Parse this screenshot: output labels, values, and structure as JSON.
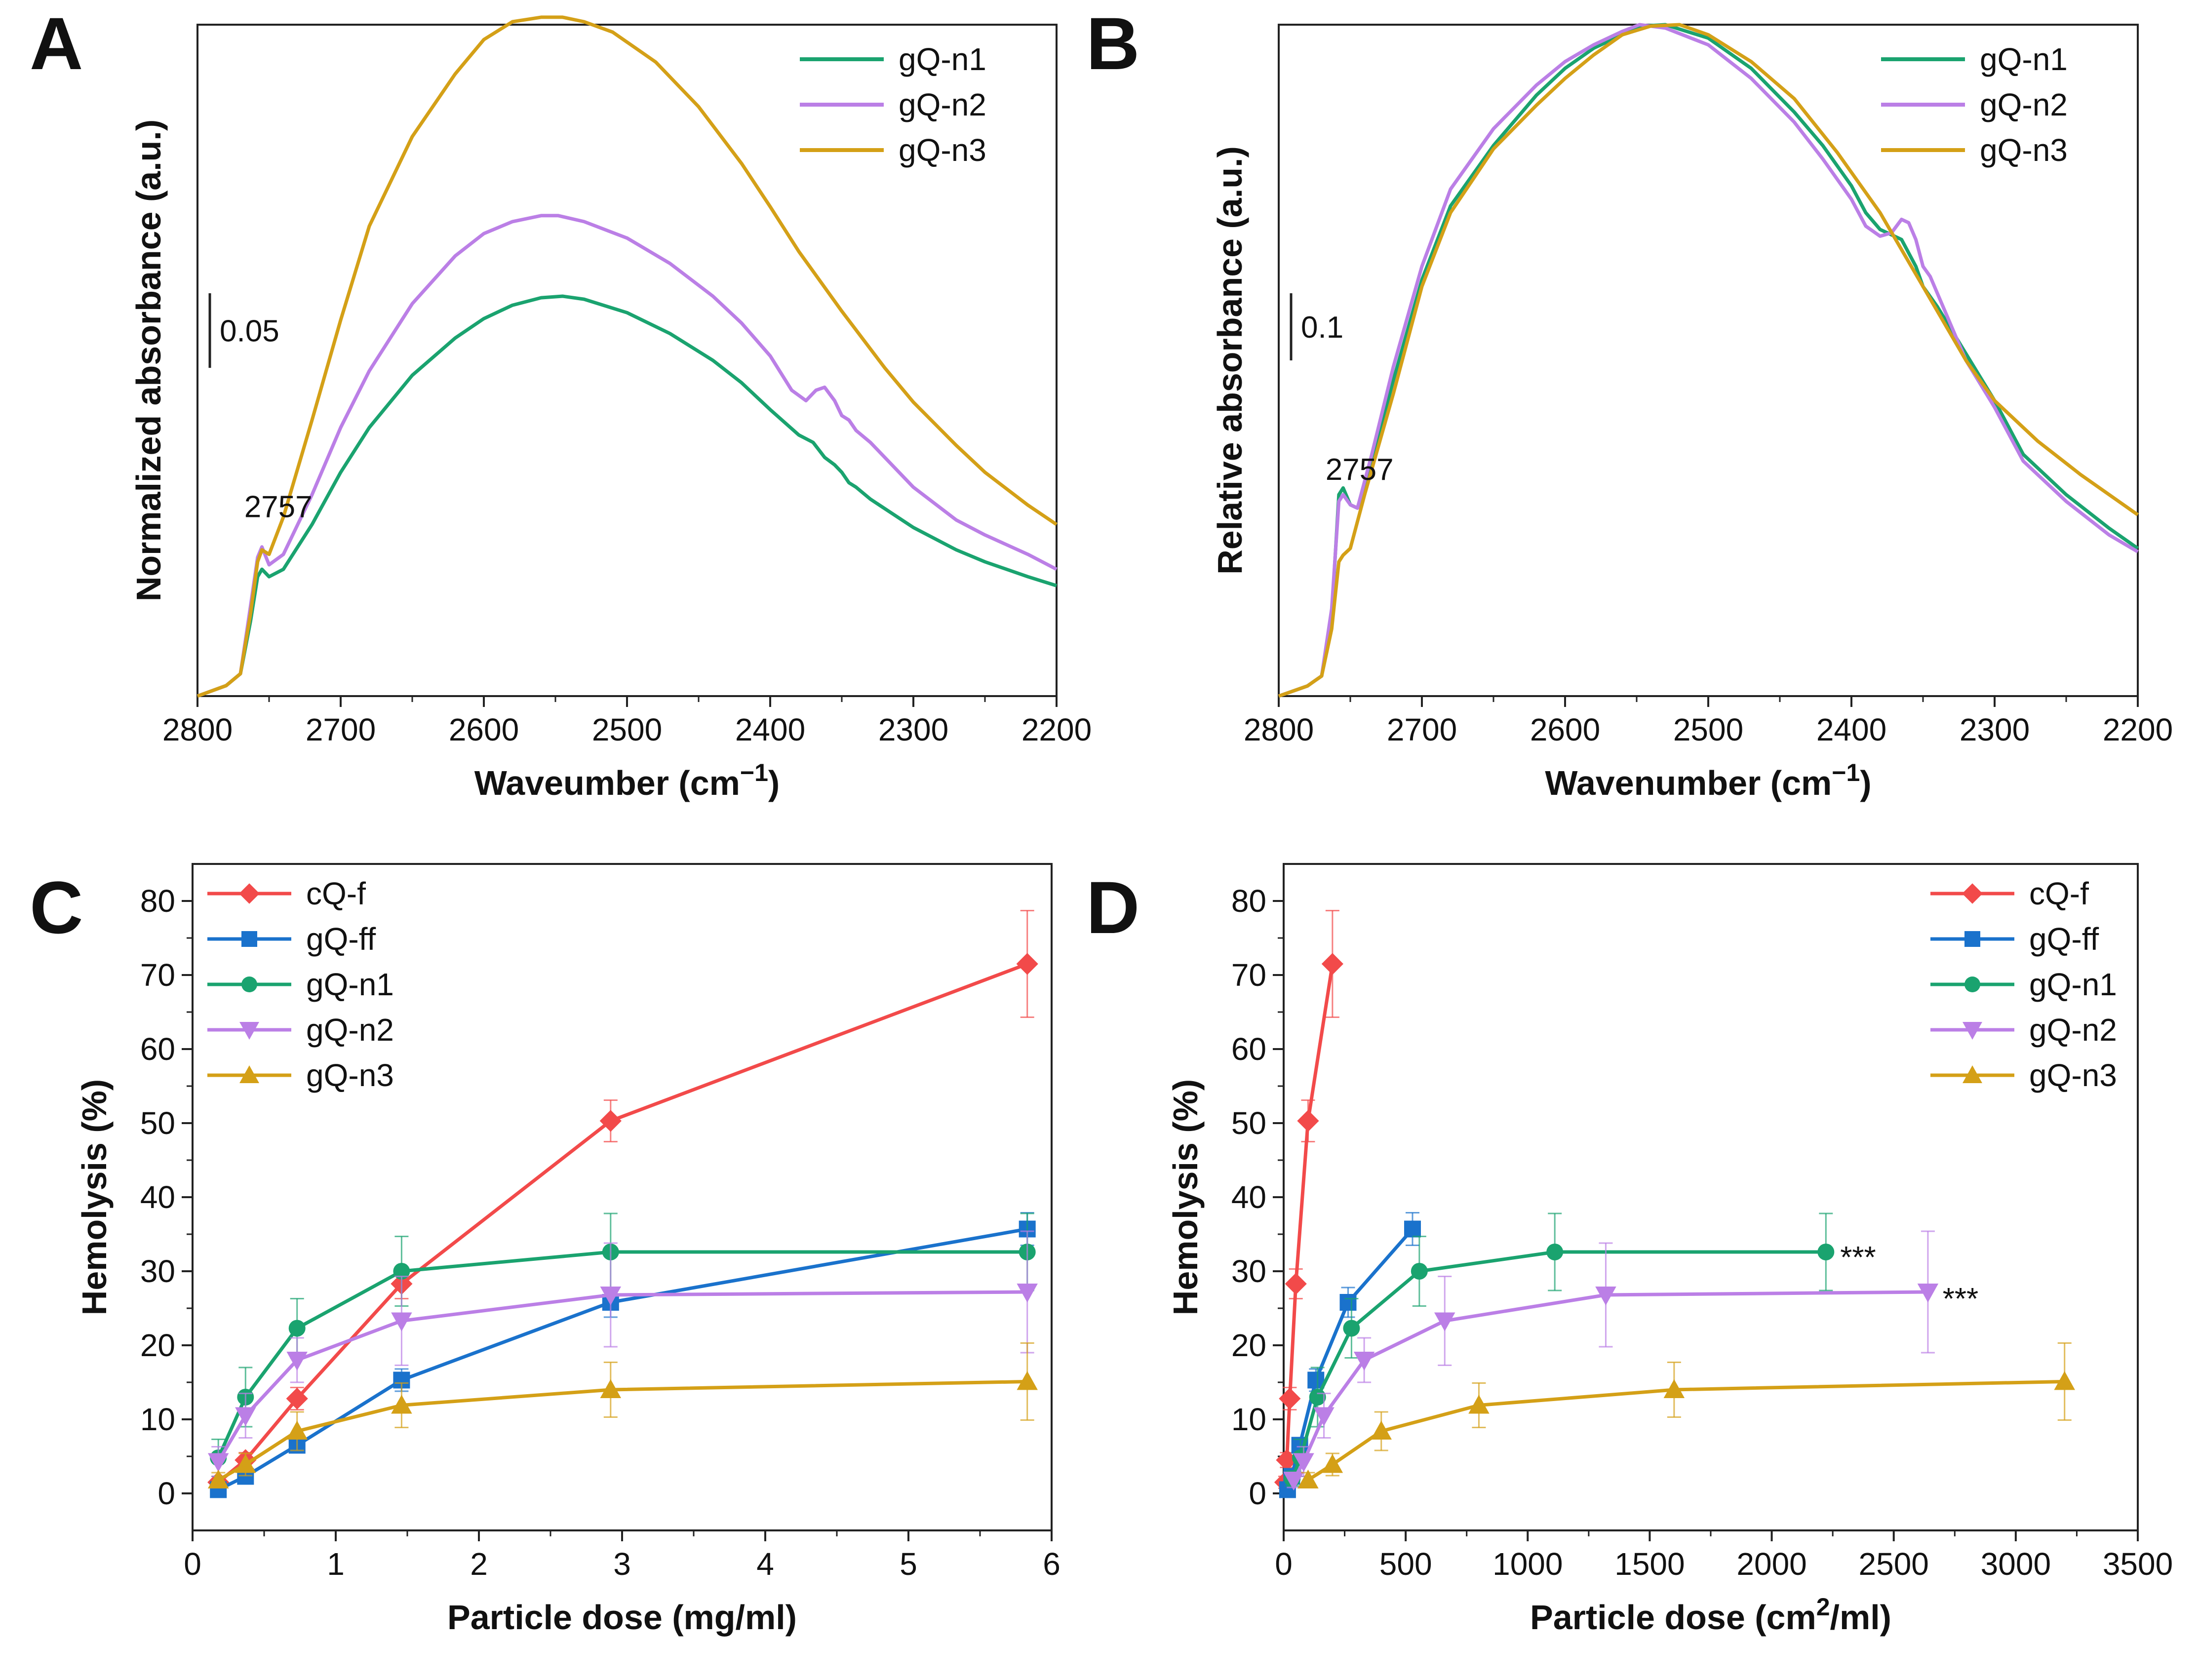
{
  "chart_data": [
    {
      "panel": "A",
      "type": "line",
      "xlabel": "Waveumber (cm",
      "xlabel_sup": "−1",
      "xlabel_close": ")",
      "ylabel": "Normalized absorbance (a.u.)",
      "xlim": [
        2800,
        2200
      ],
      "xticks": [
        2800,
        2700,
        2600,
        2500,
        2400,
        2300,
        2200
      ],
      "ylim": [
        0,
        0.45
      ],
      "scale_bar": {
        "label": "0.05",
        "value": 0.05
      },
      "annotation": {
        "label": "2757",
        "x": 2757,
        "y": 0.11
      },
      "legend": [
        "gQ-n1",
        "gQ-n2",
        "gQ-n3"
      ],
      "series": [
        {
          "name": "gQ-n1",
          "color": "#1aa36f",
          "x": [
            2800,
            2780,
            2770,
            2763,
            2758,
            2755,
            2750,
            2740,
            2720,
            2700,
            2680,
            2650,
            2620,
            2600,
            2580,
            2560,
            2545,
            2530,
            2500,
            2470,
            2440,
            2420,
            2400,
            2380,
            2370,
            2362,
            2355,
            2350,
            2345,
            2340,
            2330,
            2300,
            2270,
            2250,
            2220,
            2200
          ],
          "y": [
            0.0,
            0.007,
            0.015,
            0.05,
            0.08,
            0.085,
            0.08,
            0.085,
            0.115,
            0.15,
            0.18,
            0.215,
            0.24,
            0.253,
            0.262,
            0.267,
            0.268,
            0.266,
            0.257,
            0.243,
            0.225,
            0.21,
            0.192,
            0.175,
            0.17,
            0.16,
            0.155,
            0.15,
            0.143,
            0.14,
            0.132,
            0.113,
            0.098,
            0.09,
            0.08,
            0.074
          ]
        },
        {
          "name": "gQ-n2",
          "color": "#bb7fe6",
          "x": [
            2800,
            2780,
            2770,
            2763,
            2758,
            2755,
            2750,
            2740,
            2720,
            2700,
            2680,
            2650,
            2620,
            2600,
            2580,
            2560,
            2548,
            2530,
            2500,
            2470,
            2440,
            2420,
            2400,
            2385,
            2375,
            2368,
            2362,
            2355,
            2350,
            2345,
            2340,
            2330,
            2300,
            2270,
            2250,
            2220,
            2200
          ],
          "y": [
            0.0,
            0.007,
            0.015,
            0.06,
            0.093,
            0.1,
            0.088,
            0.095,
            0.135,
            0.18,
            0.218,
            0.263,
            0.295,
            0.31,
            0.318,
            0.322,
            0.322,
            0.318,
            0.307,
            0.29,
            0.268,
            0.25,
            0.228,
            0.205,
            0.198,
            0.205,
            0.207,
            0.198,
            0.188,
            0.185,
            0.178,
            0.17,
            0.14,
            0.118,
            0.108,
            0.095,
            0.085
          ]
        },
        {
          "name": "gQ-n3",
          "color": "#d4a017",
          "x": [
            2800,
            2780,
            2770,
            2763,
            2758,
            2755,
            2750,
            2740,
            2720,
            2700,
            2680,
            2650,
            2620,
            2600,
            2580,
            2560,
            2545,
            2530,
            2510,
            2480,
            2450,
            2420,
            2400,
            2380,
            2350,
            2320,
            2300,
            2270,
            2250,
            2220,
            2200
          ],
          "y": [
            0.0,
            0.007,
            0.015,
            0.055,
            0.09,
            0.098,
            0.095,
            0.12,
            0.185,
            0.252,
            0.315,
            0.375,
            0.417,
            0.44,
            0.452,
            0.455,
            0.455,
            0.452,
            0.445,
            0.425,
            0.395,
            0.357,
            0.328,
            0.298,
            0.258,
            0.22,
            0.197,
            0.168,
            0.15,
            0.128,
            0.115
          ]
        }
      ]
    },
    {
      "panel": "B",
      "type": "line",
      "xlabel": "Wavenumber (cm",
      "xlabel_sup": "−1",
      "xlabel_close": ")",
      "ylabel": "Relative absorbance (a.u.)",
      "xlim": [
        2800,
        2200
      ],
      "xticks": [
        2800,
        2700,
        2600,
        2500,
        2400,
        2300,
        2200
      ],
      "ylim": [
        0,
        1.0
      ],
      "scale_bar": {
        "label": "0.1",
        "value": 0.1
      },
      "annotation": {
        "label": "2757",
        "x": 2757,
        "y": 0.3
      },
      "legend": [
        "gQ-n1",
        "gQ-n2",
        "gQ-n3"
      ],
      "series": [
        {
          "name": "gQ-n1",
          "color": "#1aa36f",
          "x": [
            2800,
            2780,
            2770,
            2763,
            2758,
            2755,
            2750,
            2745,
            2735,
            2720,
            2700,
            2680,
            2650,
            2620,
            2600,
            2580,
            2560,
            2545,
            2530,
            2500,
            2470,
            2440,
            2420,
            2400,
            2390,
            2380,
            2375,
            2365,
            2355,
            2350,
            2340,
            2320,
            2300,
            2280,
            2250,
            2220,
            2200
          ],
          "y": [
            0.0,
            0.015,
            0.03,
            0.12,
            0.3,
            0.31,
            0.285,
            0.28,
            0.35,
            0.47,
            0.62,
            0.73,
            0.82,
            0.895,
            0.935,
            0.965,
            0.985,
            0.998,
            1.0,
            0.98,
            0.935,
            0.87,
            0.82,
            0.76,
            0.72,
            0.695,
            0.69,
            0.68,
            0.64,
            0.61,
            0.58,
            0.51,
            0.44,
            0.36,
            0.3,
            0.25,
            0.22
          ]
        },
        {
          "name": "gQ-n2",
          "color": "#bb7fe6",
          "x": [
            2800,
            2780,
            2770,
            2763,
            2758,
            2755,
            2750,
            2745,
            2735,
            2720,
            2700,
            2680,
            2650,
            2620,
            2600,
            2580,
            2560,
            2548,
            2530,
            2500,
            2470,
            2440,
            2420,
            2400,
            2390,
            2380,
            2372,
            2365,
            2360,
            2355,
            2350,
            2345,
            2320,
            2300,
            2280,
            2250,
            2220,
            2200
          ],
          "y": [
            0.0,
            0.015,
            0.03,
            0.13,
            0.29,
            0.3,
            0.285,
            0.28,
            0.36,
            0.49,
            0.64,
            0.755,
            0.845,
            0.91,
            0.945,
            0.97,
            0.99,
            1.0,
            0.995,
            0.97,
            0.92,
            0.855,
            0.8,
            0.74,
            0.7,
            0.685,
            0.69,
            0.71,
            0.705,
            0.68,
            0.64,
            0.625,
            0.5,
            0.43,
            0.35,
            0.29,
            0.24,
            0.215
          ]
        },
        {
          "name": "gQ-n3",
          "color": "#d4a017",
          "x": [
            2800,
            2780,
            2770,
            2763,
            2758,
            2755,
            2750,
            2740,
            2720,
            2700,
            2680,
            2650,
            2620,
            2600,
            2580,
            2560,
            2540,
            2520,
            2500,
            2470,
            2440,
            2410,
            2380,
            2350,
            2320,
            2300,
            2270,
            2240,
            2220,
            2200
          ],
          "y": [
            0.0,
            0.015,
            0.03,
            0.1,
            0.2,
            0.21,
            0.22,
            0.3,
            0.45,
            0.61,
            0.72,
            0.815,
            0.88,
            0.92,
            0.955,
            0.985,
            0.998,
            1.0,
            0.985,
            0.945,
            0.89,
            0.81,
            0.72,
            0.61,
            0.5,
            0.44,
            0.38,
            0.33,
            0.3,
            0.27
          ]
        }
      ]
    },
    {
      "panel": "C",
      "type": "scatter",
      "xlabel": "Particle dose (mg/ml)",
      "ylabel": "Hemolysis (%)",
      "xlim": [
        0,
        6
      ],
      "ylim": [
        -5,
        85
      ],
      "xticks": [
        0,
        1,
        2,
        3,
        4,
        5,
        6
      ],
      "yticks": [
        0,
        10,
        20,
        30,
        40,
        50,
        60,
        70,
        80
      ],
      "legend": [
        "cQ-f",
        "gQ-ff",
        "gQ-n1",
        "gQ-n2",
        "gQ-n3"
      ],
      "series": [
        {
          "name": "cQ-f",
          "color": "#f24a4a",
          "marker": "diamond",
          "x": [
            0.18,
            0.37,
            0.73,
            1.46,
            2.92,
            5.83
          ],
          "y": [
            1.5,
            4.5,
            12.8,
            28.3,
            50.3,
            71.5
          ],
          "err": [
            0.8,
            1.0,
            1.5,
            2.0,
            2.8,
            7.2
          ]
        },
        {
          "name": "gQ-ff",
          "color": "#1a72cc",
          "marker": "square",
          "x": [
            0.18,
            0.37,
            0.73,
            1.46,
            2.92,
            5.83
          ],
          "y": [
            0.5,
            2.3,
            6.5,
            15.3,
            25.8,
            35.7
          ],
          "err": [
            0.5,
            0.8,
            1.0,
            1.5,
            2.0,
            2.2
          ]
        },
        {
          "name": "gQ-n1",
          "color": "#1aa36f",
          "marker": "circle",
          "x": [
            0.18,
            0.37,
            0.73,
            1.46,
            2.92,
            5.83
          ],
          "y": [
            4.8,
            13.0,
            22.3,
            30.0,
            32.6,
            32.6
          ],
          "err": [
            2.5,
            4.0,
            4.0,
            4.7,
            5.2,
            5.2
          ]
        },
        {
          "name": "gQ-n2",
          "color": "#bb7fe6",
          "marker": "triangle-down",
          "x": [
            0.18,
            0.37,
            0.73,
            1.46,
            2.92,
            5.83
          ],
          "y": [
            4.3,
            10.5,
            18.0,
            23.3,
            26.8,
            27.2
          ],
          "err": [
            2.0,
            3.0,
            3.0,
            6.0,
            7.0,
            8.2
          ]
        },
        {
          "name": "gQ-n3",
          "color": "#d4a017",
          "marker": "triangle-up",
          "x": [
            0.18,
            0.37,
            0.73,
            1.46,
            2.92,
            5.83
          ],
          "y": [
            1.8,
            3.9,
            8.4,
            11.9,
            14.0,
            15.1
          ],
          "err": [
            1.0,
            1.5,
            2.6,
            3.0,
            3.7,
            5.2
          ]
        }
      ]
    },
    {
      "panel": "D",
      "type": "scatter",
      "xlabel": "Particle dose (cm",
      "xlabel_sup": "2",
      "xlabel_close": "/ml)",
      "ylabel": "Hemolysis (%)",
      "xlim": [
        0,
        3500
      ],
      "ylim": [
        -5,
        85
      ],
      "xticks": [
        0,
        500,
        1000,
        1500,
        2000,
        2500,
        3000,
        3500
      ],
      "yticks": [
        0,
        10,
        20,
        30,
        40,
        50,
        60,
        70,
        80
      ],
      "legend": [
        "cQ-f",
        "gQ-ff",
        "gQ-n1",
        "gQ-n2",
        "gQ-n3"
      ],
      "annotations": [
        {
          "label": "***",
          "x": 2240,
          "y": 32.6
        },
        {
          "label": "***",
          "x": 2660,
          "y": 27.0
        }
      ],
      "series": [
        {
          "name": "cQ-f",
          "color": "#f24a4a",
          "marker": "diamond",
          "x": [
            6,
            13,
            25,
            50,
            100,
            200
          ],
          "y": [
            1.5,
            4.5,
            12.8,
            28.3,
            50.3,
            71.5
          ],
          "err": [
            0.8,
            1.0,
            1.5,
            2.0,
            2.8,
            7.2
          ]
        },
        {
          "name": "gQ-ff",
          "color": "#1a72cc",
          "marker": "square",
          "x": [
            16,
            33,
            66,
            132,
            264,
            528
          ],
          "y": [
            0.5,
            2.3,
            6.5,
            15.3,
            25.8,
            35.7
          ],
          "err": [
            0.5,
            0.8,
            1.0,
            1.5,
            2.0,
            2.2
          ]
        },
        {
          "name": "gQ-n1",
          "color": "#1aa36f",
          "marker": "circle",
          "x": [
            35,
            69,
            139,
            278,
            556,
            1111,
            2222
          ],
          "y": [
            2.0,
            4.8,
            13.0,
            22.3,
            30.0,
            32.6,
            32.6
          ],
          "err": [
            1.0,
            2.5,
            4.0,
            4.0,
            4.7,
            5.2,
            5.2
          ]
        },
        {
          "name": "gQ-n2",
          "color": "#bb7fe6",
          "marker": "triangle-down",
          "x": [
            41,
            82,
            165,
            330,
            660,
            1320,
            2640
          ],
          "y": [
            1.8,
            4.3,
            10.5,
            18.0,
            23.3,
            26.8,
            27.2
          ],
          "err": [
            1.0,
            2.0,
            3.0,
            3.0,
            6.0,
            7.0,
            8.2
          ]
        },
        {
          "name": "gQ-n3",
          "color": "#d4a017",
          "marker": "triangle-up",
          "x": [
            100,
            200,
            400,
            800,
            1600,
            3200
          ],
          "y": [
            1.8,
            3.9,
            8.4,
            11.9,
            14.0,
            15.1
          ],
          "err": [
            1.0,
            1.5,
            2.6,
            3.0,
            3.7,
            5.2
          ]
        }
      ]
    }
  ]
}
